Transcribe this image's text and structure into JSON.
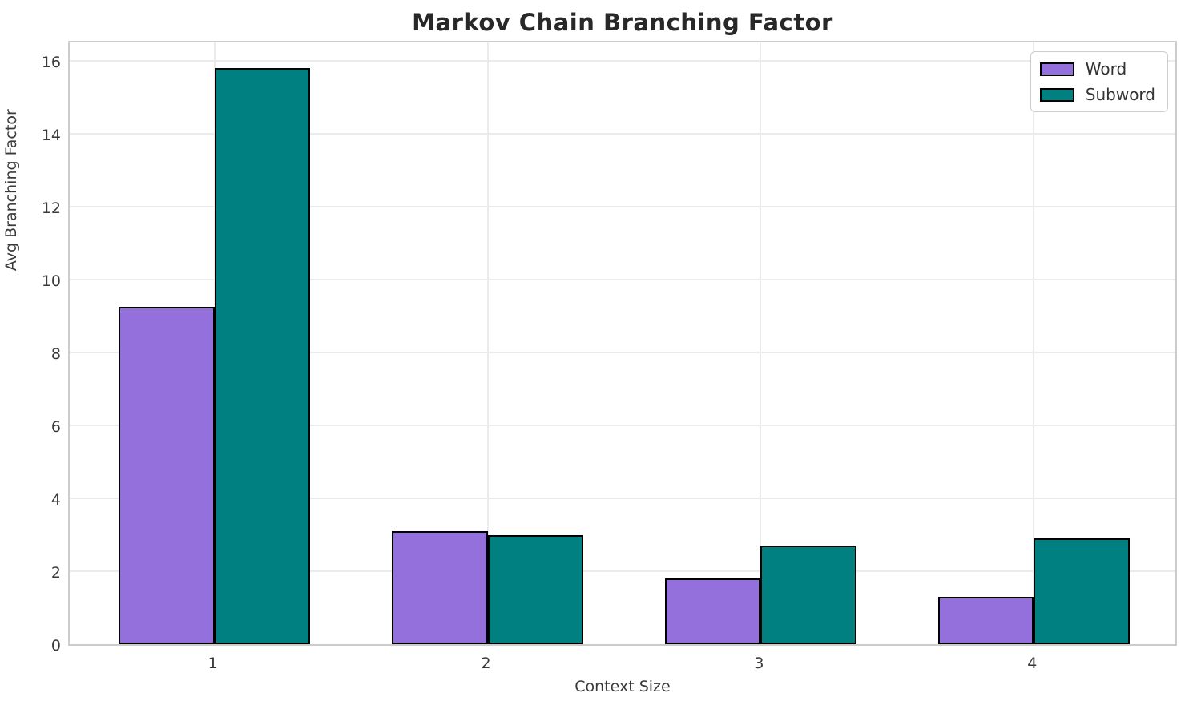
{
  "chart_data": {
    "type": "bar",
    "title": "Markov Chain Branching Factor",
    "xlabel": "Context Size",
    "ylabel": "Avg Branching Factor",
    "categories": [
      "1",
      "2",
      "3",
      "4"
    ],
    "series": [
      {
        "name": "Word",
        "color": "#9370DB",
        "values": [
          9.25,
          3.1,
          1.8,
          1.3
        ]
      },
      {
        "name": "Subword",
        "color": "#008080",
        "values": [
          15.8,
          3.0,
          2.7,
          2.9
        ]
      }
    ],
    "yticks": [
      0,
      2,
      4,
      6,
      8,
      10,
      12,
      14,
      16
    ],
    "ylim": [
      0,
      16.6
    ],
    "bar_edge_color": "#000000",
    "bar_width_data_units": 0.35,
    "x_padding_data_units": 0.53,
    "grid": true,
    "legend_position": "upper right",
    "colors": {
      "grid": "#ebebeb",
      "spine": "#cccccc",
      "title_text": "#282828",
      "tick_text": "#3a3a3a"
    }
  }
}
